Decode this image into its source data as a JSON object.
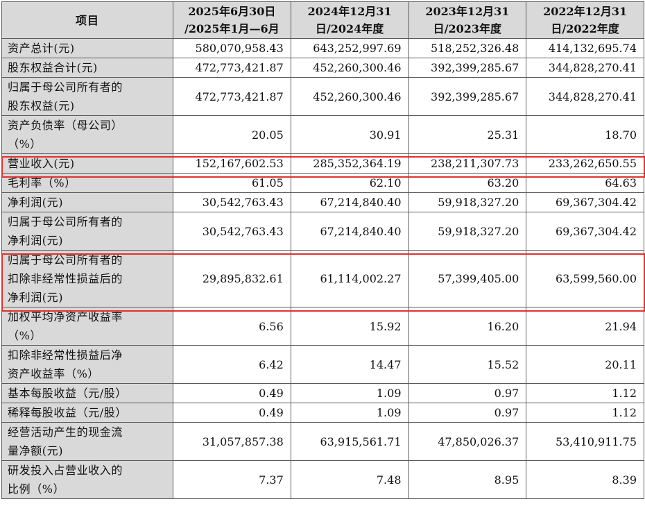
{
  "table": {
    "headers": [
      {
        "line1": "项目",
        "line2": ""
      },
      {
        "line1": "2025年6月30日",
        "line2": "/2025年1月—6月"
      },
      {
        "line1": "2024年12月31",
        "line2": "日/2024年度"
      },
      {
        "line1": "2023年12月31",
        "line2": "日/2023年度"
      },
      {
        "line1": "2022年12月31",
        "line2": "日/2022年度"
      }
    ],
    "rows": [
      {
        "label": [
          "资产总计(元)"
        ],
        "values": [
          "580,070,958.43",
          "643,252,997.69",
          "518,252,326.48",
          "414,132,695.74"
        ]
      },
      {
        "label": [
          "股东权益合计(元)"
        ],
        "values": [
          "472,773,421.87",
          "452,260,300.46",
          "392,399,285.67",
          "344,828,270.41"
        ]
      },
      {
        "label": [
          "归属于母公司所有者的",
          "股东权益(元)"
        ],
        "values": [
          "472,773,421.87",
          "452,260,300.46",
          "392,399,285.67",
          "344,828,270.41"
        ]
      },
      {
        "label": [
          "资产负债率（母公司）",
          "（%）"
        ],
        "values": [
          "20.05",
          "30.91",
          "25.31",
          "18.70"
        ]
      },
      {
        "label": [
          "营业收入(元)"
        ],
        "values": [
          "152,167,602.53",
          "285,352,364.19",
          "238,211,307.73",
          "233,262,650.55"
        ]
      },
      {
        "label": [
          "毛利率（%）"
        ],
        "values": [
          "61.05",
          "62.10",
          "63.20",
          "64.63"
        ]
      },
      {
        "label": [
          "净利润(元)"
        ],
        "values": [
          "30,542,763.43",
          "67,214,840.40",
          "59,918,327.20",
          "69,367,304.42"
        ]
      },
      {
        "label": [
          "归属于母公司所有者的",
          "净利润(元)"
        ],
        "values": [
          "30,542,763.43",
          "67,214,840.40",
          "59,918,327.20",
          "69,367,304.42"
        ]
      },
      {
        "label": [
          "归属于母公司所有者的",
          "扣除非经常性损益后的",
          "净利润(元)"
        ],
        "values": [
          "29,895,832.61",
          "61,114,002.27",
          "57,399,405.00",
          "63,599,560.00"
        ]
      },
      {
        "label": [
          "加权平均净资产收益率",
          "（%）"
        ],
        "values": [
          "6.56",
          "15.92",
          "16.20",
          "21.94"
        ]
      },
      {
        "label": [
          "扣除非经常性损益后净",
          "资产收益率（%）"
        ],
        "values": [
          "6.42",
          "14.47",
          "15.52",
          "20.11"
        ]
      },
      {
        "label": [
          "基本每股收益（元/股）"
        ],
        "values": [
          "0.49",
          "1.09",
          "0.97",
          "1.12"
        ]
      },
      {
        "label": [
          "稀释每股收益（元/股）"
        ],
        "values": [
          "0.49",
          "1.09",
          "0.97",
          "1.12"
        ]
      },
      {
        "label": [
          "经营活动产生的现金流",
          "量净额(元)"
        ],
        "values": [
          "31,057,857.38",
          "63,915,561.71",
          "47,850,026.37",
          "53,410,911.75"
        ]
      },
      {
        "label": [
          "研发投入占营业收入的",
          "比例（%）"
        ],
        "values": [
          "7.37",
          "7.48",
          "8.95",
          "8.39"
        ]
      }
    ]
  },
  "highlight_color": "#e0322e",
  "header_background": "#d9d9d9"
}
